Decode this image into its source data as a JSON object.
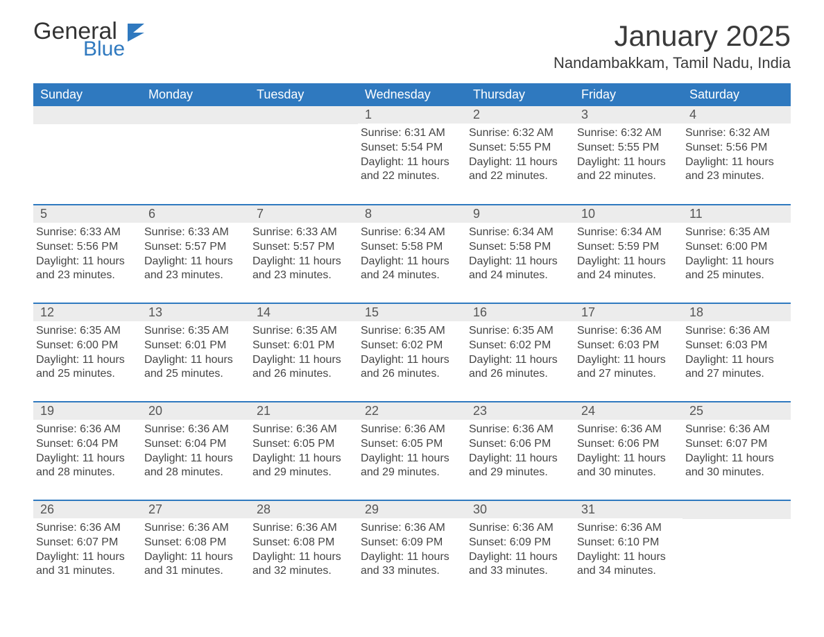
{
  "logo": {
    "general": "General",
    "blue": "Blue"
  },
  "header": {
    "month_title": "January 2025",
    "location": "Nandambakkam, Tamil Nadu, India"
  },
  "colors": {
    "header_bg": "#2f79bf",
    "header_text": "#ffffff",
    "daynum_bg": "#ececec",
    "row_border": "#2f79bf",
    "body_text": "#444444",
    "title_text": "#3a3a3a"
  },
  "day_labels": [
    "Sunday",
    "Monday",
    "Tuesday",
    "Wednesday",
    "Thursday",
    "Friday",
    "Saturday"
  ],
  "label_templates": {
    "sunrise": "Sunrise: {v}",
    "sunset": "Sunset: {v}",
    "daylight": "Daylight: {v}."
  },
  "weeks": [
    [
      null,
      null,
      null,
      {
        "n": "1",
        "sunrise": "6:31 AM",
        "sunset": "5:54 PM",
        "daylight": "11 hours and 22 minutes"
      },
      {
        "n": "2",
        "sunrise": "6:32 AM",
        "sunset": "5:55 PM",
        "daylight": "11 hours and 22 minutes"
      },
      {
        "n": "3",
        "sunrise": "6:32 AM",
        "sunset": "5:55 PM",
        "daylight": "11 hours and 22 minutes"
      },
      {
        "n": "4",
        "sunrise": "6:32 AM",
        "sunset": "5:56 PM",
        "daylight": "11 hours and 23 minutes"
      }
    ],
    [
      {
        "n": "5",
        "sunrise": "6:33 AM",
        "sunset": "5:56 PM",
        "daylight": "11 hours and 23 minutes"
      },
      {
        "n": "6",
        "sunrise": "6:33 AM",
        "sunset": "5:57 PM",
        "daylight": "11 hours and 23 minutes"
      },
      {
        "n": "7",
        "sunrise": "6:33 AM",
        "sunset": "5:57 PM",
        "daylight": "11 hours and 23 minutes"
      },
      {
        "n": "8",
        "sunrise": "6:34 AM",
        "sunset": "5:58 PM",
        "daylight": "11 hours and 24 minutes"
      },
      {
        "n": "9",
        "sunrise": "6:34 AM",
        "sunset": "5:58 PM",
        "daylight": "11 hours and 24 minutes"
      },
      {
        "n": "10",
        "sunrise": "6:34 AM",
        "sunset": "5:59 PM",
        "daylight": "11 hours and 24 minutes"
      },
      {
        "n": "11",
        "sunrise": "6:35 AM",
        "sunset": "6:00 PM",
        "daylight": "11 hours and 25 minutes"
      }
    ],
    [
      {
        "n": "12",
        "sunrise": "6:35 AM",
        "sunset": "6:00 PM",
        "daylight": "11 hours and 25 minutes"
      },
      {
        "n": "13",
        "sunrise": "6:35 AM",
        "sunset": "6:01 PM",
        "daylight": "11 hours and 25 minutes"
      },
      {
        "n": "14",
        "sunrise": "6:35 AM",
        "sunset": "6:01 PM",
        "daylight": "11 hours and 26 minutes"
      },
      {
        "n": "15",
        "sunrise": "6:35 AM",
        "sunset": "6:02 PM",
        "daylight": "11 hours and 26 minutes"
      },
      {
        "n": "16",
        "sunrise": "6:35 AM",
        "sunset": "6:02 PM",
        "daylight": "11 hours and 26 minutes"
      },
      {
        "n": "17",
        "sunrise": "6:36 AM",
        "sunset": "6:03 PM",
        "daylight": "11 hours and 27 minutes"
      },
      {
        "n": "18",
        "sunrise": "6:36 AM",
        "sunset": "6:03 PM",
        "daylight": "11 hours and 27 minutes"
      }
    ],
    [
      {
        "n": "19",
        "sunrise": "6:36 AM",
        "sunset": "6:04 PM",
        "daylight": "11 hours and 28 minutes"
      },
      {
        "n": "20",
        "sunrise": "6:36 AM",
        "sunset": "6:04 PM",
        "daylight": "11 hours and 28 minutes"
      },
      {
        "n": "21",
        "sunrise": "6:36 AM",
        "sunset": "6:05 PM",
        "daylight": "11 hours and 29 minutes"
      },
      {
        "n": "22",
        "sunrise": "6:36 AM",
        "sunset": "6:05 PM",
        "daylight": "11 hours and 29 minutes"
      },
      {
        "n": "23",
        "sunrise": "6:36 AM",
        "sunset": "6:06 PM",
        "daylight": "11 hours and 29 minutes"
      },
      {
        "n": "24",
        "sunrise": "6:36 AM",
        "sunset": "6:06 PM",
        "daylight": "11 hours and 30 minutes"
      },
      {
        "n": "25",
        "sunrise": "6:36 AM",
        "sunset": "6:07 PM",
        "daylight": "11 hours and 30 minutes"
      }
    ],
    [
      {
        "n": "26",
        "sunrise": "6:36 AM",
        "sunset": "6:07 PM",
        "daylight": "11 hours and 31 minutes"
      },
      {
        "n": "27",
        "sunrise": "6:36 AM",
        "sunset": "6:08 PM",
        "daylight": "11 hours and 31 minutes"
      },
      {
        "n": "28",
        "sunrise": "6:36 AM",
        "sunset": "6:08 PM",
        "daylight": "11 hours and 32 minutes"
      },
      {
        "n": "29",
        "sunrise": "6:36 AM",
        "sunset": "6:09 PM",
        "daylight": "11 hours and 33 minutes"
      },
      {
        "n": "30",
        "sunrise": "6:36 AM",
        "sunset": "6:09 PM",
        "daylight": "11 hours and 33 minutes"
      },
      {
        "n": "31",
        "sunrise": "6:36 AM",
        "sunset": "6:10 PM",
        "daylight": "11 hours and 34 minutes"
      },
      null
    ]
  ]
}
